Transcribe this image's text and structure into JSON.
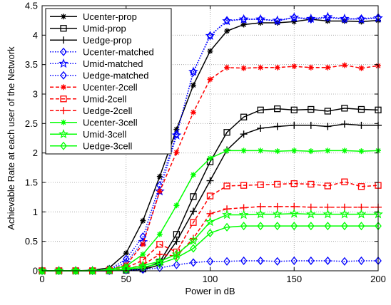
{
  "chart_data": {
    "type": "line",
    "title": "",
    "xlabel": "Power in dB",
    "ylabel": "Achievable Rate at each user of the Network",
    "xlim": [
      0,
      200
    ],
    "ylim": [
      0,
      4.5
    ],
    "xticks": [
      0,
      50,
      100,
      150,
      200
    ],
    "yticks": [
      0,
      0.5,
      1,
      1.5,
      2,
      2.5,
      3,
      3.5,
      4,
      4.5
    ],
    "grid": true,
    "legend_position": "top-left",
    "x": [
      0,
      10,
      20,
      30,
      40,
      50,
      60,
      70,
      80,
      90,
      100,
      110,
      120,
      130,
      140,
      150,
      160,
      170,
      180,
      190,
      200
    ],
    "series": [
      {
        "name": "Ucenter-prop",
        "color": "#000000",
        "dash": "solid",
        "marker": "asterisk",
        "values": [
          0,
          0,
          0,
          0.01,
          0.05,
          0.3,
          0.85,
          1.6,
          2.4,
          3.15,
          3.73,
          4.07,
          4.18,
          4.21,
          4.21,
          4.23,
          4.27,
          4.24,
          4.24,
          4.23,
          4.25
        ]
      },
      {
        "name": "Umid-prop",
        "color": "#000000",
        "dash": "solid",
        "marker": "square",
        "values": [
          0,
          0,
          0,
          0,
          0,
          0.01,
          0.03,
          0.15,
          0.62,
          1.26,
          1.85,
          2.35,
          2.61,
          2.73,
          2.75,
          2.73,
          2.74,
          2.71,
          2.76,
          2.74,
          2.73
        ]
      },
      {
        "name": "Uedge-prop",
        "color": "#000000",
        "dash": "solid",
        "marker": "plus",
        "values": [
          0,
          0,
          0,
          0,
          0,
          0.01,
          0.02,
          0.1,
          0.5,
          1.01,
          1.53,
          2.05,
          2.32,
          2.42,
          2.45,
          2.47,
          2.47,
          2.45,
          2.49,
          2.47,
          2.47
        ]
      },
      {
        "name": "Ucenter-matched",
        "color": "#0000ff",
        "dash": "dotted",
        "marker": "diamond",
        "values": [
          0,
          0,
          0,
          0,
          0.02,
          0.2,
          0.58,
          1.45,
          2.32,
          3.37,
          3.99,
          4.25,
          4.27,
          4.27,
          4.24,
          4.3,
          4.27,
          4.3,
          4.27,
          4.28,
          4.3
        ]
      },
      {
        "name": "Umid-matched",
        "color": "#0000ff",
        "dash": "dotted",
        "marker": "pentagram",
        "values": [
          0,
          0,
          0,
          0,
          0.01,
          0.14,
          0.49,
          1.35,
          2.3,
          3.38,
          3.99,
          4.24,
          4.27,
          4.27,
          4.25,
          4.3,
          4.28,
          4.31,
          4.28,
          4.27,
          4.29
        ]
      },
      {
        "name": "Uedge-matched",
        "color": "#0000ff",
        "dash": "dotted",
        "marker": "diamond",
        "values": [
          0,
          0,
          0,
          0,
          0,
          0.01,
          0.02,
          0.05,
          0.1,
          0.14,
          0.16,
          0.16,
          0.17,
          0.17,
          0.16,
          0.17,
          0.17,
          0.17,
          0.16,
          0.17,
          0.17
        ]
      },
      {
        "name": "Ucenter-2cell",
        "color": "#ff0000",
        "dash": "dashed",
        "marker": "asterisk",
        "values": [
          0,
          0,
          0,
          0,
          0.02,
          0.1,
          0.45,
          1.35,
          2.01,
          2.69,
          3.25,
          3.45,
          3.44,
          3.45,
          3.45,
          3.47,
          3.45,
          3.45,
          3.49,
          3.44,
          3.48
        ]
      },
      {
        "name": "Umid-2cell",
        "color": "#ff0000",
        "dash": "dashed",
        "marker": "square",
        "values": [
          0,
          0,
          0,
          0,
          0.01,
          0.05,
          0.18,
          0.45,
          0.32,
          0.82,
          1.27,
          1.44,
          1.45,
          1.46,
          1.47,
          1.48,
          1.47,
          1.44,
          1.51,
          1.43,
          1.45
        ]
      },
      {
        "name": "Uedge-2cell",
        "color": "#ff0000",
        "dash": "dashed",
        "marker": "plus",
        "values": [
          0,
          0,
          0,
          0,
          0,
          0.03,
          0.1,
          0.28,
          0.25,
          0.55,
          0.97,
          1.05,
          1.07,
          1.09,
          1.09,
          1.09,
          1.08,
          1.08,
          1.08,
          1.08,
          1.08
        ]
      },
      {
        "name": "Ucenter-3cell",
        "color": "#00ff00",
        "dash": "solid",
        "marker": "asterisk",
        "values": [
          0,
          0,
          0,
          0,
          0.02,
          0.08,
          0.28,
          0.62,
          1.11,
          1.63,
          1.91,
          2.04,
          2.04,
          2.04,
          2.03,
          2.04,
          2.03,
          2.04,
          2.04,
          2.03,
          2.04
        ]
      },
      {
        "name": "Umid-3cell",
        "color": "#00ff00",
        "dash": "solid",
        "marker": "pentagram",
        "values": [
          0,
          0,
          0,
          0,
          0.01,
          0.03,
          0.09,
          0.16,
          0.28,
          0.51,
          0.83,
          0.95,
          0.95,
          0.96,
          0.96,
          0.97,
          0.96,
          0.96,
          0.96,
          0.96,
          0.96
        ]
      },
      {
        "name": "Uedge-3cell",
        "color": "#00ff00",
        "dash": "solid",
        "marker": "diamond",
        "values": [
          0,
          0,
          0,
          0,
          0.01,
          0.02,
          0.06,
          0.12,
          0.22,
          0.38,
          0.64,
          0.74,
          0.76,
          0.76,
          0.76,
          0.76,
          0.76,
          0.76,
          0.76,
          0.76,
          0.76
        ]
      }
    ]
  }
}
